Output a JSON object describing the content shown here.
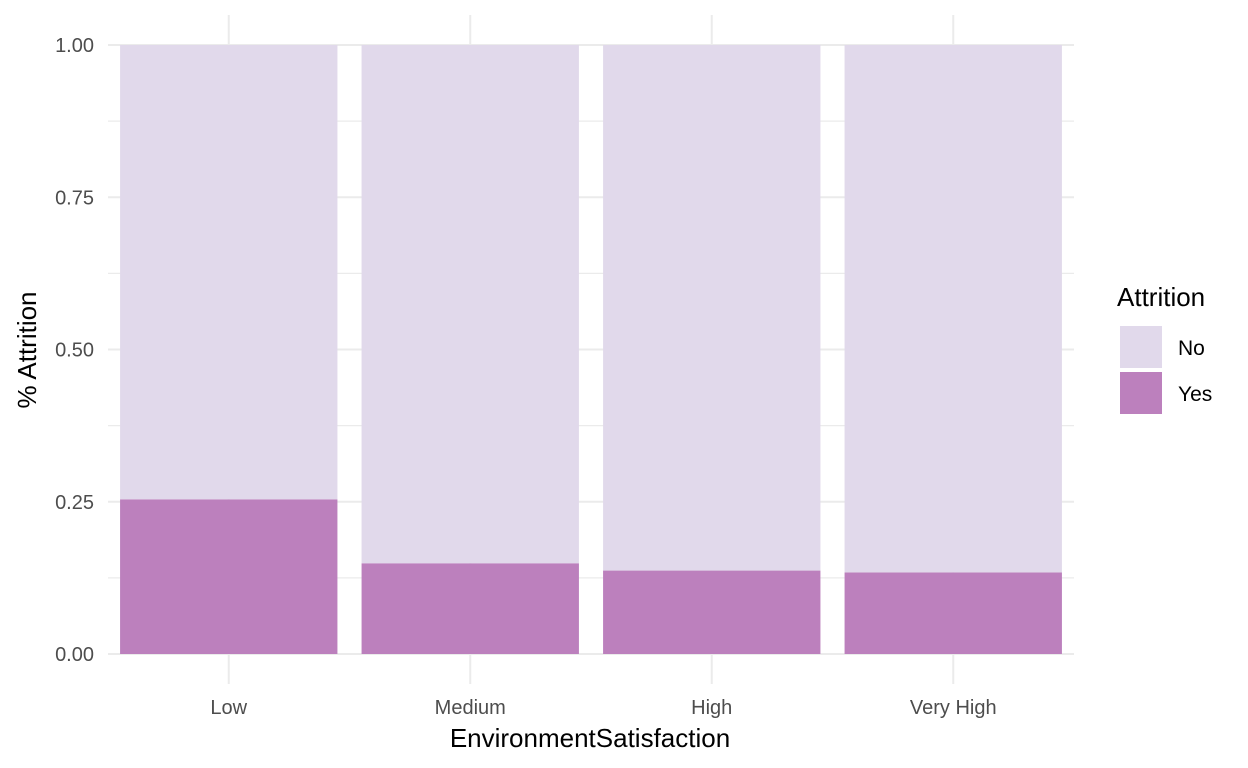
{
  "chart_data": {
    "type": "bar",
    "stacked": true,
    "categories": [
      "Low",
      "Medium",
      "High",
      "Very High"
    ],
    "series": [
      {
        "name": "No",
        "values": [
          0.746,
          0.851,
          0.863,
          0.866
        ],
        "color": "#e1d9eb"
      },
      {
        "name": "Yes",
        "values": [
          0.254,
          0.149,
          0.137,
          0.134
        ],
        "color": "#bc80bd"
      }
    ],
    "xlabel": "EnvironmentSatisfaction",
    "ylabel": "% Attrition",
    "ylim": [
      0,
      1
    ],
    "yticks": [
      "0.00",
      "0.25",
      "0.50",
      "0.75",
      "1.00"
    ],
    "grid": true,
    "legend": {
      "title": "Attrition",
      "position": "right",
      "entries": [
        "No",
        "Yes"
      ]
    }
  }
}
